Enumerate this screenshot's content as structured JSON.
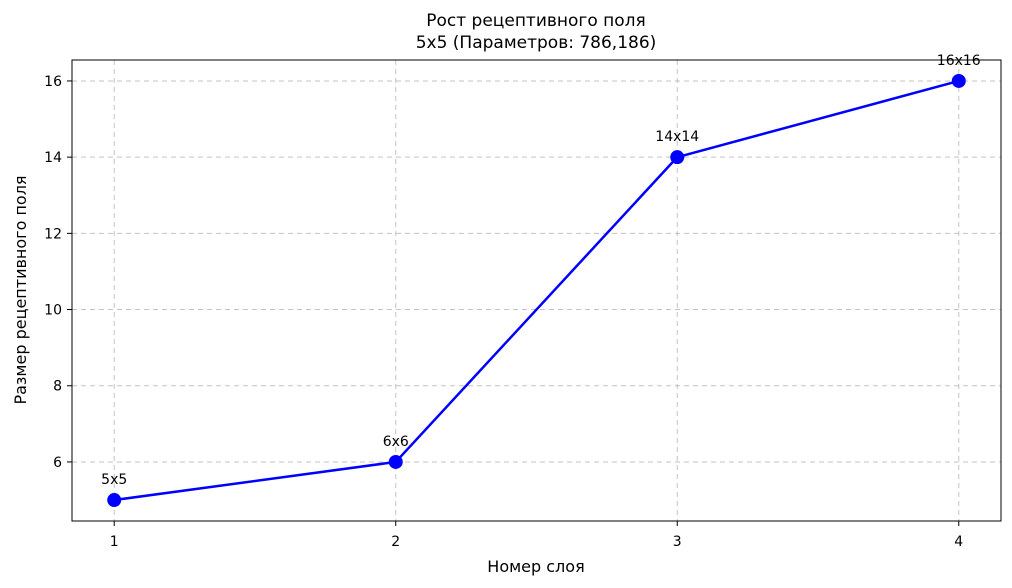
{
  "chart_data": {
    "type": "line",
    "title": "Рост рецептивного поля",
    "subtitle": "5x5 (Параметров: 786,186)",
    "xlabel": "Номер слоя",
    "ylabel": "Размер рецептивного поля",
    "x": [
      1,
      2,
      3,
      4
    ],
    "x_ticks": [
      1,
      2,
      3,
      4
    ],
    "y_ticks": [
      6,
      8,
      10,
      12,
      14,
      16
    ],
    "xlim": [
      0.85,
      4.15
    ],
    "ylim": [
      4.45,
      16.55
    ],
    "grid": true,
    "series": [
      {
        "values": [
          5,
          6,
          14,
          16
        ],
        "labels": [
          "5x5",
          "6x6",
          "14x14",
          "16x16"
        ],
        "color": "#0000ff",
        "marker": "circle"
      }
    ]
  }
}
